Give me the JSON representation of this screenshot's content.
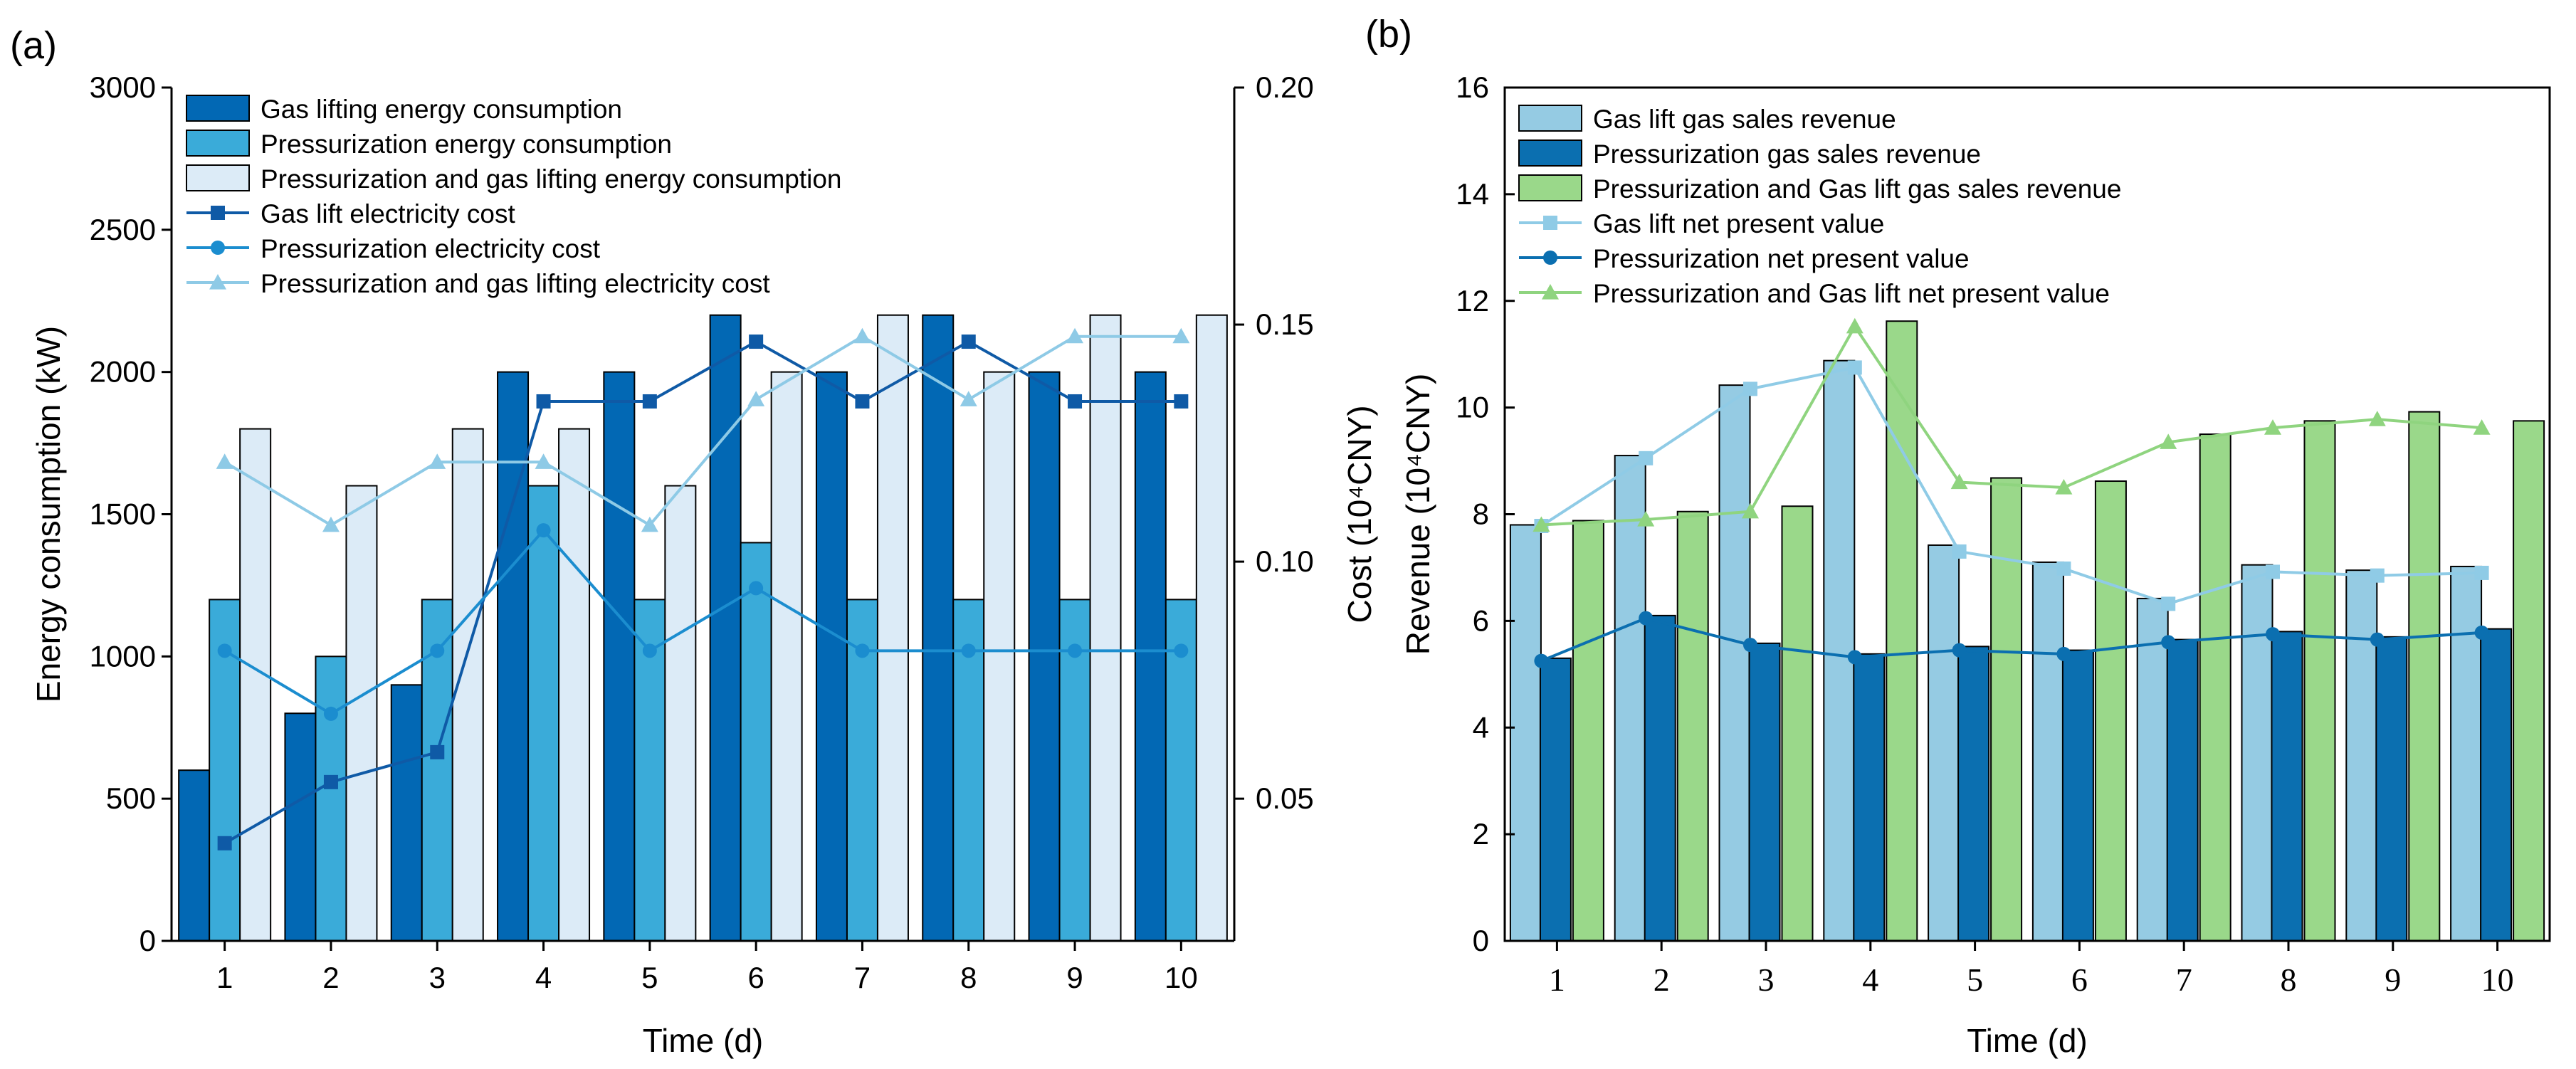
{
  "figure": {
    "panels": [
      "(a)",
      "(b)"
    ]
  },
  "colors": {
    "gas_lift_bar": "#0268b4",
    "pressurization_bar": "#3aabd9",
    "combined_bar": "#dcebf7",
    "gas_lift_cost_line": "#0f5aa6",
    "pressurization_cost_line": "#1b8dcf",
    "combined_cost_line": "#8ecae6",
    "b_gas_lift_bar": "#95cbe3",
    "b_pressurization_bar": "#0b6fb0",
    "b_combined_bar": "#9ad88a",
    "b_gas_lift_line": "#8fcbe6",
    "b_pressurization_line": "#0b6fb0",
    "b_combined_line": "#8fd47f"
  },
  "chart_data": [
    {
      "panel_label": "(a)",
      "type": "bar",
      "categories": [
        "1",
        "2",
        "3",
        "4",
        "5",
        "6",
        "7",
        "8",
        "9",
        "10"
      ],
      "xlabel": "Time (d)",
      "ylabel": "Energy consumption (kW)",
      "ylim": [
        0,
        3000
      ],
      "yticks": [
        "0",
        "500",
        "1000",
        "1500",
        "2000",
        "2500",
        "3000"
      ],
      "y2label": "Cost (10⁴CNY)",
      "y2lim": [
        0.02,
        0.2
      ],
      "y2ticks": [
        "0.05",
        "0.10",
        "0.15",
        "0.20"
      ],
      "legend_position": "top-left",
      "series": [
        {
          "name": "Gas lifting energy consumption",
          "kind": "bar",
          "axis": "left",
          "color_key": "gas_lift_bar",
          "values": [
            600,
            800,
            900,
            2000,
            2000,
            2200,
            2000,
            2200,
            2000,
            2000
          ]
        },
        {
          "name": "Pressurization energy consumption",
          "kind": "bar",
          "axis": "left",
          "color_key": "pressurization_bar",
          "values": [
            1200,
            1000,
            1200,
            1600,
            1200,
            1400,
            1200,
            1200,
            1200,
            1200
          ]
        },
        {
          "name": "Pressurization and gas lifting energy consumption",
          "kind": "bar",
          "axis": "left",
          "color_key": "combined_bar",
          "values": [
            1800,
            1600,
            1800,
            1800,
            1600,
            2000,
            2200,
            2000,
            2200,
            2200
          ]
        },
        {
          "name": "Gas lift electricity cost",
          "kind": "line",
          "marker": "square",
          "axis": "right",
          "color_key": "gas_lift_cost_line",
          "values": [
            0.0406,
            0.0535,
            0.0598,
            0.1338,
            0.1338,
            0.1464,
            0.1338,
            0.1464,
            0.1338,
            0.1338
          ]
        },
        {
          "name": "Pressurization electricity cost",
          "kind": "line",
          "marker": "circle",
          "axis": "right",
          "color_key": "pressurization_cost_line",
          "values": [
            0.0812,
            0.0679,
            0.0812,
            0.1066,
            0.0812,
            0.0944,
            0.0812,
            0.0812,
            0.0812,
            0.0812
          ]
        },
        {
          "name": "Pressurization and gas lifting electricity cost",
          "kind": "line",
          "marker": "triangle",
          "axis": "right",
          "color_key": "combined_cost_line",
          "values": [
            0.121,
            0.1077,
            0.121,
            0.121,
            0.1077,
            0.1342,
            0.1475,
            0.1342,
            0.1475,
            0.1475
          ]
        }
      ]
    },
    {
      "panel_label": "(b)",
      "type": "bar",
      "categories": [
        "1",
        "2",
        "3",
        "4",
        "5",
        "6",
        "7",
        "8",
        "9",
        "10"
      ],
      "xlabel": "Time (d)",
      "ylabel": "Revenue (10⁴CNY)",
      "ylim": [
        0,
        16
      ],
      "yticks": [
        "0",
        "2",
        "4",
        "6",
        "8",
        "10",
        "12",
        "14",
        "16"
      ],
      "legend_position": "top-left",
      "series": [
        {
          "name": "Gas lift gas sales revenue",
          "kind": "bar",
          "color_key": "b_gas_lift_bar",
          "values": [
            7.8,
            9.1,
            10.42,
            10.88,
            7.42,
            7.1,
            6.42,
            7.05,
            6.95,
            7.02
          ]
        },
        {
          "name": "Pressurization gas sales revenue",
          "kind": "bar",
          "color_key": "b_pressurization_bar",
          "values": [
            5.3,
            6.1,
            5.58,
            5.38,
            5.52,
            5.45,
            5.65,
            5.8,
            5.7,
            5.85
          ]
        },
        {
          "name": "Pressurization and Gas lift gas sales revenue",
          "kind": "bar",
          "color_key": "b_combined_bar",
          "values": [
            7.88,
            8.05,
            8.15,
            11.62,
            8.68,
            8.62,
            9.5,
            9.75,
            9.92,
            9.75
          ]
        },
        {
          "name": "Gas lift net present value",
          "kind": "line",
          "marker": "square",
          "color_key": "b_gas_lift_line",
          "values": [
            7.78,
            9.05,
            10.35,
            10.75,
            7.3,
            6.98,
            6.32,
            6.92,
            6.85,
            6.9
          ]
        },
        {
          "name": "Pressurization net present value",
          "kind": "line",
          "marker": "circle",
          "color_key": "b_pressurization_line",
          "values": [
            5.25,
            6.05,
            5.55,
            5.32,
            5.45,
            5.38,
            5.6,
            5.75,
            5.65,
            5.78
          ]
        },
        {
          "name": "Pressurization and Gas lift net present value",
          "kind": "line",
          "marker": "triangle",
          "color_key": "b_combined_line",
          "values": [
            7.8,
            7.9,
            8.05,
            11.52,
            8.6,
            8.5,
            9.35,
            9.62,
            9.78,
            9.62
          ]
        }
      ]
    }
  ]
}
